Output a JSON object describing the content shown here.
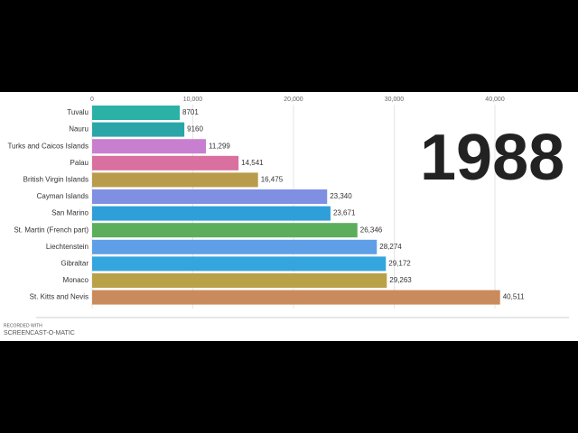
{
  "chart_data": {
    "type": "bar",
    "orientation": "horizontal",
    "year": "1988",
    "categories": [
      "Tuvalu",
      "Nauru",
      "Turks and Caicos Islands",
      "Palau",
      "British Virgin Islands",
      "Cayman Islands",
      "San Marino",
      "St. Martin (French part)",
      "Liechtenstein",
      "Gibraltar",
      "Monaco",
      "St. Kitts and Nevis"
    ],
    "values": [
      8701,
      9160,
      11299,
      14541,
      16475,
      23340,
      23671,
      26346,
      28274,
      29172,
      29263,
      40511
    ],
    "value_labels": [
      "8701",
      "9160",
      "11,299",
      "14,541",
      "16,475",
      "23,340",
      "23,671",
      "26,346",
      "28,274",
      "29,172",
      "29,263",
      "40,511"
    ],
    "colors": [
      "#2bb1a6",
      "#2ba6a8",
      "#c97fcf",
      "#d9709f",
      "#b89c4b",
      "#7f8fe2",
      "#2f9fd9",
      "#5cae5c",
      "#5e9fe8",
      "#35a5dd",
      "#b9a148",
      "#c98b5c"
    ],
    "xlim": [
      0,
      48250
    ],
    "xticks": [
      0,
      {
        "value": 10000,
        "label": "10,000"
      },
      {
        "value": 20000,
        "label": "20,000"
      },
      {
        "value": 30000,
        "label": "30,000"
      },
      {
        "value": 40000,
        "label": "40,000"
      }
    ],
    "grid": true,
    "watermark": [
      "RECORDED WITH",
      "SCREENCAST-O-MATIC"
    ]
  }
}
